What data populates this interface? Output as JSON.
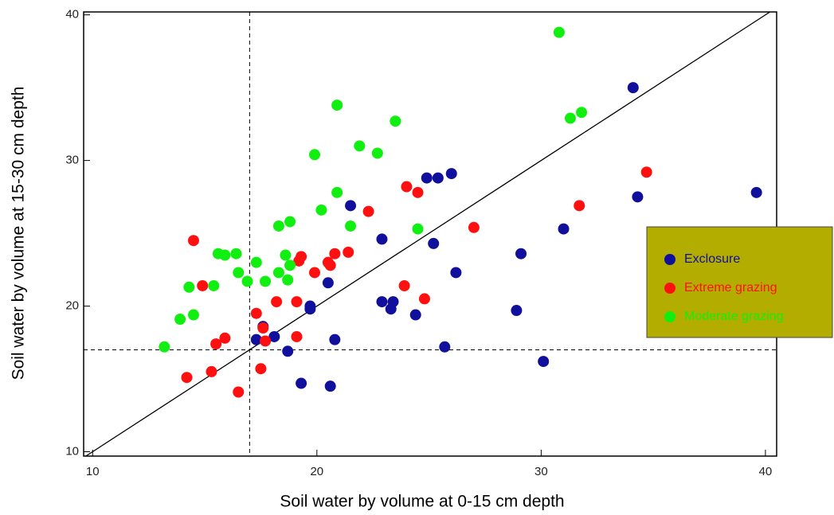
{
  "chart_data": {
    "type": "scatter",
    "x_label": "Soil water by volume at 0-15 cm depth",
    "y_label": "Soil water by volume at 15-30 cm depth",
    "xlim": [
      9.6,
      40.5
    ],
    "ylim": [
      9.7,
      40.2
    ],
    "xticks": [
      10,
      20,
      30,
      40
    ],
    "yticks": [
      10,
      20,
      30,
      40
    ],
    "reference_lines": {
      "x": 17,
      "y": 17
    },
    "identity_line": true,
    "legend": "right",
    "legend_color": "#b3ad00",
    "series": [
      {
        "name": "Exclosure",
        "color": "#10109c",
        "x": [
          21.5,
          24.9,
          25.4,
          26.0,
          34.1,
          34.3,
          39.6,
          31.0,
          29.1,
          25.2,
          26.2,
          22.9,
          20.5,
          19.7,
          19.7,
          22.9,
          23.4,
          23.3,
          24.4,
          25.7,
          28.9,
          30.1,
          17.6,
          18.1,
          17.3,
          18.7,
          20.8,
          19.3,
          20.6
        ],
        "y": [
          26.9,
          28.8,
          28.8,
          29.1,
          35.0,
          27.5,
          27.8,
          25.3,
          23.6,
          24.3,
          22.3,
          24.6,
          21.6,
          20.0,
          19.8,
          20.3,
          20.3,
          19.8,
          19.4,
          17.2,
          19.7,
          16.2,
          18.6,
          17.9,
          17.7,
          16.9,
          17.7,
          14.7,
          14.5
        ]
      },
      {
        "name": "Extreme grazing",
        "color": "#ff1010",
        "x": [
          14.5,
          14.9,
          14.2,
          15.3,
          15.5,
          15.9,
          16.5,
          17.3,
          17.6,
          17.5,
          17.7,
          18.2,
          19.1,
          19.1,
          19.3,
          19.2,
          19.9,
          20.5,
          20.6,
          20.8,
          21.4,
          22.3,
          24.0,
          24.5,
          23.9,
          24.8,
          27.0,
          31.7,
          34.7
        ],
        "y": [
          24.5,
          21.4,
          15.1,
          15.5,
          17.4,
          17.8,
          14.1,
          19.5,
          18.5,
          15.7,
          17.6,
          20.3,
          20.3,
          17.9,
          23.4,
          23.1,
          22.3,
          23.0,
          22.8,
          23.6,
          23.7,
          26.5,
          28.2,
          27.8,
          21.4,
          20.5,
          25.4,
          26.9,
          29.2
        ]
      },
      {
        "name": "Moderate grazing",
        "color": "#10ef10",
        "x": [
          13.2,
          13.9,
          14.5,
          14.3,
          15.4,
          15.6,
          15.9,
          16.4,
          16.5,
          16.9,
          17.3,
          17.7,
          18.3,
          18.3,
          18.8,
          18.6,
          18.8,
          18.7,
          19.9,
          20.2,
          20.9,
          20.9,
          21.9,
          22.7,
          21.5,
          23.5,
          24.5,
          30.8,
          31.3,
          31.8
        ],
        "y": [
          17.2,
          19.1,
          19.4,
          21.3,
          21.4,
          23.6,
          23.5,
          23.6,
          22.3,
          21.7,
          23.0,
          21.7,
          22.3,
          25.5,
          25.8,
          23.5,
          22.8,
          21.8,
          30.4,
          26.6,
          27.8,
          33.8,
          31.0,
          30.5,
          25.5,
          32.7,
          25.3,
          38.8,
          32.9,
          33.3
        ]
      }
    ]
  }
}
